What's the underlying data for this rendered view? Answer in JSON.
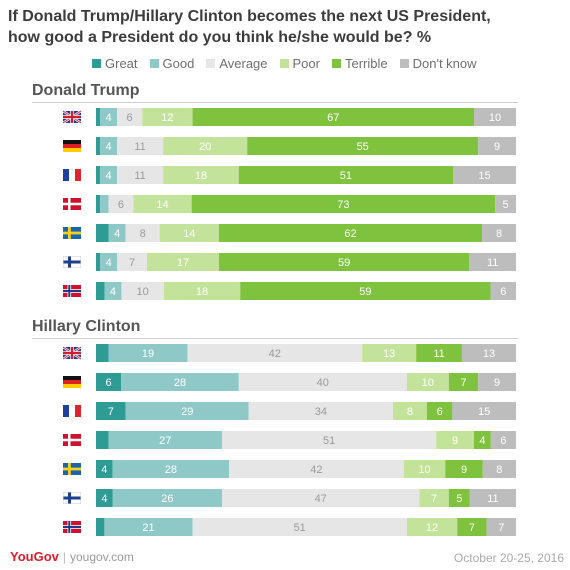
{
  "title_line1": "If Donald Trump/Hillary Clinton becomes the next US President,",
  "title_line2": "how good a President do you think he/she would be? %",
  "footer": {
    "brand": "YouGov",
    "separator": "|",
    "url": "yougov.com",
    "date": "October 20-25, 2016"
  },
  "chart_data": {
    "type": "bar",
    "orientation": "horizontal-stacked-100",
    "categories_legend": [
      "Great",
      "Good",
      "Average",
      "Poor",
      "Terrible",
      "Don't know"
    ],
    "colors": {
      "Great": "#2e9b94",
      "Good": "#8fc9c7",
      "Average": "#e6e6e6",
      "Poor": "#c4e39a",
      "Terrible": "#7ec23e",
      "Don't know": "#bdbdbd"
    },
    "country_names": [
      "UK",
      "Germany",
      "France",
      "Denmark",
      "Sweden",
      "Finland",
      "Norway"
    ],
    "groups": [
      {
        "name": "Donald Trump",
        "rows": [
          {
            "country": "UK",
            "values": [
              1,
              4,
              6,
              12,
              67,
              10
            ],
            "labels": [
              "",
              "4",
              "6",
              "12",
              "67",
              "10"
            ]
          },
          {
            "country": "Germany",
            "values": [
              1,
              4,
              11,
              20,
              55,
              9
            ],
            "labels": [
              "",
              "4",
              "11",
              "20",
              "55",
              "9"
            ]
          },
          {
            "country": "France",
            "values": [
              1,
              4,
              11,
              18,
              51,
              15
            ],
            "labels": [
              "",
              "4",
              "11",
              "18",
              "51",
              "15"
            ]
          },
          {
            "country": "Denmark",
            "values": [
              1,
              2,
              6,
              14,
              73,
              5
            ],
            "labels": [
              "",
              "",
              "6",
              "14",
              "73",
              "5"
            ]
          },
          {
            "country": "Sweden",
            "values": [
              3,
              4,
              8,
              14,
              62,
              8
            ],
            "labels": [
              "",
              "4",
              "8",
              "14",
              "62",
              "8"
            ]
          },
          {
            "country": "Finland",
            "values": [
              1,
              4,
              7,
              17,
              59,
              11
            ],
            "labels": [
              "",
              "4",
              "7",
              "17",
              "59",
              "11"
            ]
          },
          {
            "country": "Norway",
            "values": [
              2,
              4,
              10,
              18,
              59,
              6
            ],
            "labels": [
              "",
              "4",
              "10",
              "18",
              "59",
              "6"
            ]
          }
        ]
      },
      {
        "name": "Hillary Clinton",
        "rows": [
          {
            "country": "UK",
            "values": [
              3,
              19,
              42,
              13,
              11,
              13
            ],
            "labels": [
              "",
              "19",
              "42",
              "13",
              "11",
              "13"
            ]
          },
          {
            "country": "Germany",
            "values": [
              6,
              28,
              40,
              10,
              7,
              9
            ],
            "labels": [
              "6",
              "28",
              "40",
              "10",
              "7",
              "9"
            ]
          },
          {
            "country": "France",
            "values": [
              7,
              29,
              34,
              8,
              6,
              15
            ],
            "labels": [
              "7",
              "29",
              "34",
              "8",
              "6",
              "15"
            ]
          },
          {
            "country": "Denmark",
            "values": [
              3,
              27,
              51,
              9,
              4,
              6
            ],
            "labels": [
              "",
              "27",
              "51",
              "9",
              "4",
              "6"
            ]
          },
          {
            "country": "Sweden",
            "values": [
              4,
              28,
              42,
              10,
              9,
              8
            ],
            "labels": [
              "4",
              "28",
              "42",
              "10",
              "9",
              "8"
            ]
          },
          {
            "country": "Finland",
            "values": [
              4,
              26,
              47,
              7,
              5,
              11
            ],
            "labels": [
              "4",
              "26",
              "47",
              "7",
              "5",
              "11"
            ]
          },
          {
            "country": "Norway",
            "values": [
              2,
              21,
              51,
              12,
              7,
              7
            ],
            "labels": [
              "",
              "21",
              "51",
              "12",
              "7",
              "7"
            ]
          }
        ]
      }
    ]
  }
}
